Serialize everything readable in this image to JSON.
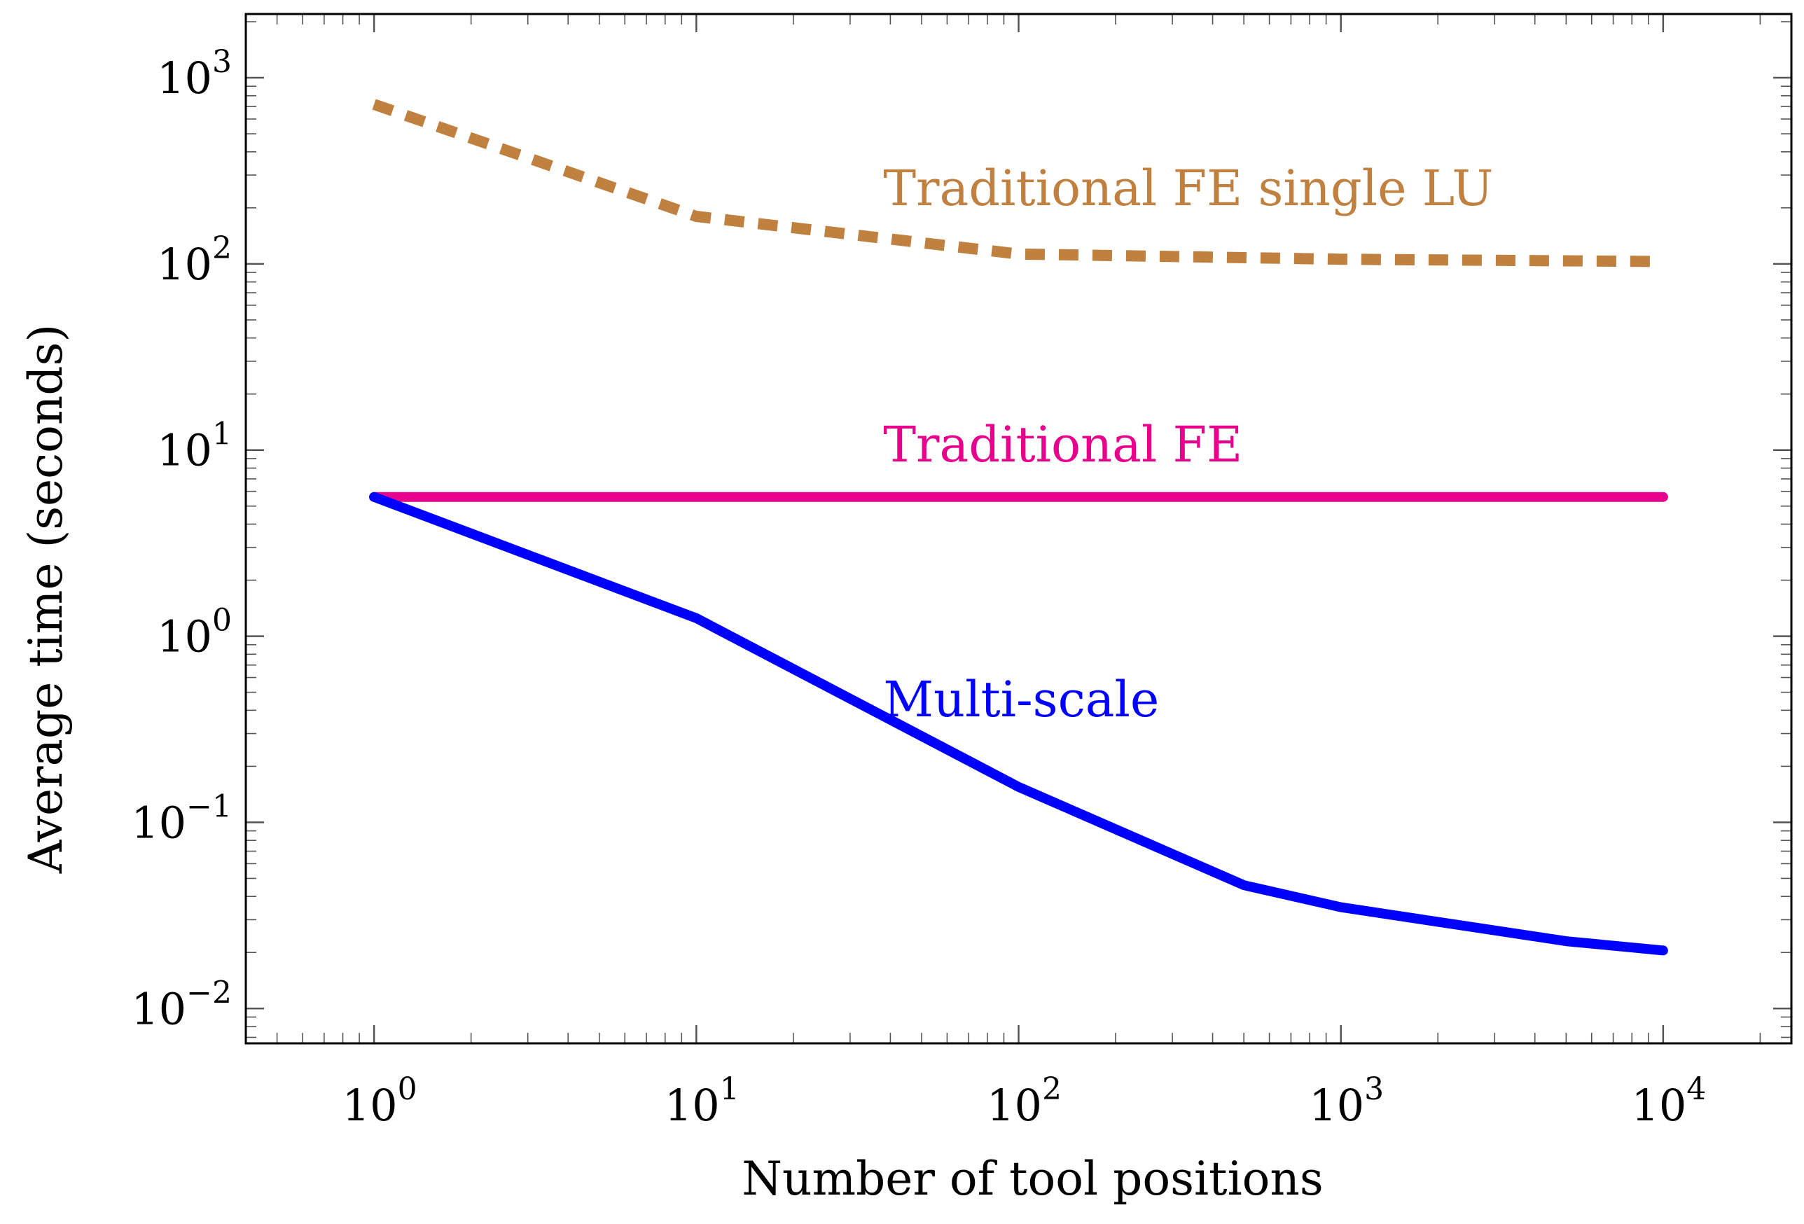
{
  "chart_data": {
    "type": "line",
    "title": "",
    "xlabel": "Number of tool positions",
    "ylabel": "Average time (seconds)",
    "xscale": "log",
    "yscale": "log",
    "xlim": [
      0.4,
      25000
    ],
    "ylim": [
      0.0065,
      2200
    ],
    "grid": false,
    "x_ticks": [
      {
        "base": "10",
        "exp": "0",
        "value": 1
      },
      {
        "base": "10",
        "exp": "1",
        "value": 10
      },
      {
        "base": "10",
        "exp": "2",
        "value": 100
      },
      {
        "base": "10",
        "exp": "3",
        "value": 1000
      },
      {
        "base": "10",
        "exp": "4",
        "value": 10000
      }
    ],
    "y_ticks": [
      {
        "base": "10",
        "exp": "−2",
        "value": 0.01
      },
      {
        "base": "10",
        "exp": "−1",
        "value": 0.1
      },
      {
        "base": "10",
        "exp": "0",
        "value": 1
      },
      {
        "base": "10",
        "exp": "1",
        "value": 10
      },
      {
        "base": "10",
        "exp": "2",
        "value": 100
      },
      {
        "base": "10",
        "exp": "3",
        "value": 1000
      }
    ],
    "series": [
      {
        "name": "Traditional FE single LU",
        "color": "#c08040",
        "style": "dashed",
        "x": [
          1,
          10,
          100,
          1000,
          10000
        ],
        "values": [
          720,
          180,
          113,
          106,
          103
        ],
        "label_at": {
          "x": 40,
          "y": 250
        }
      },
      {
        "name": "Traditional FE",
        "color": "#e6008c",
        "style": "solid",
        "x": [
          1,
          10000
        ],
        "values": [
          5.6,
          5.6
        ],
        "label_at": {
          "x": 40,
          "y": 10.5
        }
      },
      {
        "name": "Multi-scale",
        "color": "#0000ff",
        "style": "solid",
        "x": [
          1,
          10,
          100,
          500,
          1000,
          5000,
          10000
        ],
        "values": [
          5.6,
          1.25,
          0.155,
          0.046,
          0.035,
          0.023,
          0.0205
        ],
        "label_at": {
          "x": 40,
          "y": 0.45
        }
      }
    ]
  }
}
